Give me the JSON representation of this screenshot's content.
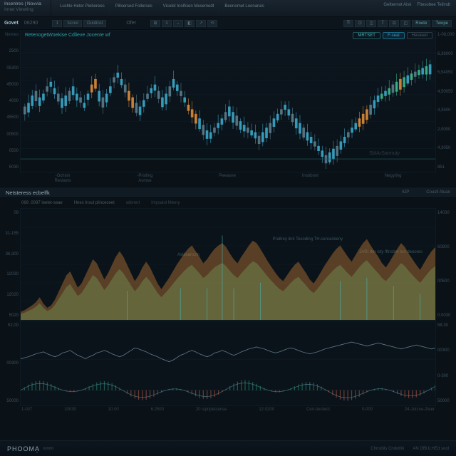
{
  "header": {
    "logo_l1": "Insentres | Novvia",
    "logo_l2": "Innet Viewting",
    "nav": [
      "Lushle Heter Pieborees",
      "Pillsersed Follerses",
      "Vicelet Inolfcien Mesemedt",
      "Beonomet Loonanes"
    ],
    "right": [
      "Gelbernot Aisk",
      "Fitesobee Teilindt"
    ]
  },
  "toolbar": {
    "symbol": "Govet",
    "value": "06290",
    "btns1": [
      "1",
      "Iscnel",
      "Outdinst"
    ],
    "label_r1": "Ofer",
    "btn_icons": [
      "⊞",
      "≡",
      "⌄",
      "◧",
      "↗",
      "⟲"
    ],
    "btn_icons2": [
      "⎘",
      "⊡",
      "◫",
      "⫿",
      "⊟",
      "◰",
      "Roete",
      "Twope"
    ]
  },
  "chart1": {
    "title": "RetenogetWoekise Cdlieve Jocente wf",
    "pills": [
      "MRTSET",
      "F-seal",
      "Heuleed"
    ],
    "watermark": "SblArSannuty",
    "yticks_l": [
      "Nemes",
      "2500",
      "05300",
      "45000",
      "4000",
      "45500",
      "00500",
      "0500",
      "5030"
    ],
    "yticks_r": [
      "1-08,000",
      "6,36000",
      "5,54050",
      "4,50050",
      "4,3500",
      "2,0000",
      "4,3050",
      "851"
    ],
    "xgroups": [
      {
        "a": "-Ochish",
        "b": "Reslasts"
      },
      {
        "a": "-Prioling",
        "b": "Asmse"
      },
      {
        "a": "Peeasne",
        "b": ""
      },
      {
        "a": "Insbbont",
        "b": ""
      },
      {
        "a": "Negyting",
        "b": ""
      }
    ],
    "candles": {
      "count": 110,
      "colors": {
        "up": "#3aa5c5",
        "down": "#5a7a8a",
        "high": "#d88a3a",
        "green": "#3ab58a"
      },
      "seed_path": [
        72,
        68,
        60,
        55,
        62,
        58,
        50,
        45,
        52,
        58,
        63,
        60,
        55,
        50,
        58,
        62,
        68,
        58,
        48,
        42,
        55,
        62,
        58,
        50,
        40,
        35,
        42,
        48,
        55,
        62,
        68,
        72,
        65,
        58,
        52,
        48,
        55,
        62,
        58,
        50,
        42,
        48,
        55,
        62,
        70,
        75,
        80,
        85,
        92,
        98,
        100,
        95,
        90,
        85,
        78,
        72,
        78,
        82,
        88,
        92,
        95,
        98,
        100,
        104,
        100,
        95,
        90,
        85,
        80,
        75,
        70,
        75,
        80,
        85,
        90,
        95,
        100,
        105,
        110,
        115,
        120,
        125,
        122,
        118,
        115,
        110,
        105,
        100,
        95,
        90,
        85,
        80,
        75,
        70,
        65,
        60,
        58,
        55,
        52,
        48,
        45,
        42,
        40,
        38,
        36,
        34,
        32,
        30,
        28,
        26
      ],
      "highlight_idx": [
        18,
        19,
        28,
        29,
        44,
        45,
        46,
        90,
        91,
        92,
        100,
        101
      ]
    },
    "bg": "#0a1218",
    "grid": "#142028"
  },
  "section2": {
    "title": "Netsteress ecbelfk",
    "sub1": "4JP",
    "sub2": "Coustl Aluan"
  },
  "tabs2": [
    "069 .0097 leelet-seae",
    "Hnes Insul plinceceet",
    "wibrent",
    "Imysaiol Meery"
  ],
  "chart2": {
    "yticks_l": [
      "09",
      "31-155",
      "36,300",
      "12030",
      "12020",
      "5020"
    ],
    "yticks_r": [
      "14030",
      "60800",
      "00500",
      "0.0030"
    ],
    "annot1": "Prallrey link Tesoding\nTH.cenraskeny",
    "annot2": "JARI Iter isty\nIftnstirn Ion deoores",
    "annot3": "Aslesancnn",
    "area_colors": {
      "fill1": "#d88a3a",
      "fill2": "#3a9a6a",
      "spike": "#4ab5b8"
    },
    "area_points": [
      10,
      12,
      15,
      18,
      22,
      28,
      20,
      15,
      18,
      25,
      35,
      45,
      55,
      60,
      50,
      40,
      45,
      55,
      65,
      75,
      70,
      60,
      50,
      58,
      68,
      78,
      85,
      78,
      68,
      58,
      48,
      55,
      65,
      72,
      65,
      55,
      45,
      38,
      45,
      52,
      60,
      68,
      75,
      82,
      88,
      92,
      85,
      78,
      70,
      75,
      82,
      88,
      92,
      95,
      90,
      82,
      75,
      70,
      78,
      85,
      92,
      98,
      95,
      88,
      80,
      72,
      65,
      58,
      52,
      48,
      55,
      62,
      68,
      72,
      65,
      58,
      50,
      45,
      52,
      60,
      68,
      75,
      82,
      88,
      92,
      85,
      78,
      72,
      80,
      88,
      95,
      100,
      92,
      85,
      78,
      70,
      65,
      72,
      80,
      88,
      95,
      90,
      82,
      75,
      68,
      62,
      70,
      78,
      85,
      90
    ],
    "spikes": [
      0,
      0,
      0,
      0,
      0,
      0,
      0,
      0,
      0,
      0,
      0,
      0,
      0,
      0,
      0,
      0,
      0,
      0,
      0,
      0,
      0,
      0,
      0,
      0,
      0,
      0,
      0,
      0,
      0,
      0,
      0,
      0,
      0,
      0,
      0,
      0,
      0,
      0,
      0,
      0,
      0,
      0,
      0,
      0,
      0,
      0,
      0,
      0,
      0,
      0,
      0,
      0,
      0,
      120,
      0,
      0,
      0,
      0,
      0,
      0,
      0,
      0,
      0,
      0,
      0,
      0,
      0,
      0,
      0,
      0,
      0,
      0,
      0,
      0,
      0,
      0,
      0,
      0,
      0,
      0,
      0,
      0,
      0,
      0,
      0,
      0,
      0,
      0,
      0,
      0,
      0,
      0,
      0,
      0,
      0,
      0,
      0,
      0,
      0,
      0,
      0,
      0,
      0,
      0,
      0,
      0,
      0,
      0,
      0,
      0
    ]
  },
  "chart3": {
    "yticks_l": [
      "52,00",
      "00300",
      "50000"
    ],
    "yticks_r": [
      "58,30",
      "00300",
      "0-300",
      "50000"
    ],
    "line_color": "#6a8595",
    "bar_up": "#2a9a7a",
    "bar_dn": "#c85a4a",
    "line_points": [
      62,
      60,
      58,
      55,
      52,
      50,
      48,
      52,
      55,
      58,
      55,
      50,
      48,
      45,
      50,
      55,
      58,
      62,
      58,
      55,
      50,
      48,
      45,
      48,
      52,
      55,
      58,
      55,
      50,
      45,
      40,
      42,
      45,
      48,
      52,
      55,
      58,
      62,
      65,
      68,
      65,
      60,
      55,
      52,
      48,
      45,
      48,
      52,
      55,
      58,
      55,
      50,
      48,
      45,
      48,
      52,
      55,
      52,
      48,
      45,
      42,
      40,
      38,
      40,
      42,
      45,
      48,
      50,
      48,
      45,
      42,
      40,
      42,
      45,
      48,
      50,
      52,
      50,
      48,
      45,
      42,
      40,
      38,
      36,
      34,
      32,
      30,
      28,
      30,
      32,
      34,
      36,
      34,
      32,
      30,
      32,
      34,
      36,
      38,
      40,
      42,
      40,
      38,
      36,
      34,
      36,
      38,
      40,
      42,
      40
    ]
  },
  "xaxis_bot": [
    "1-037",
    "10030",
    "10.00",
    "6.2500",
    "20 sipripetcense",
    "12.0200",
    "Cen-tiecilect",
    "0-000",
    "24-Jutcne-2teer"
  ],
  "footer": {
    "brand": "PHOOMA̩",
    "brand_sub": "romm",
    "right": [
      "Chnsbils Cndottin",
      "AN OBULHEd sool"
    ]
  }
}
